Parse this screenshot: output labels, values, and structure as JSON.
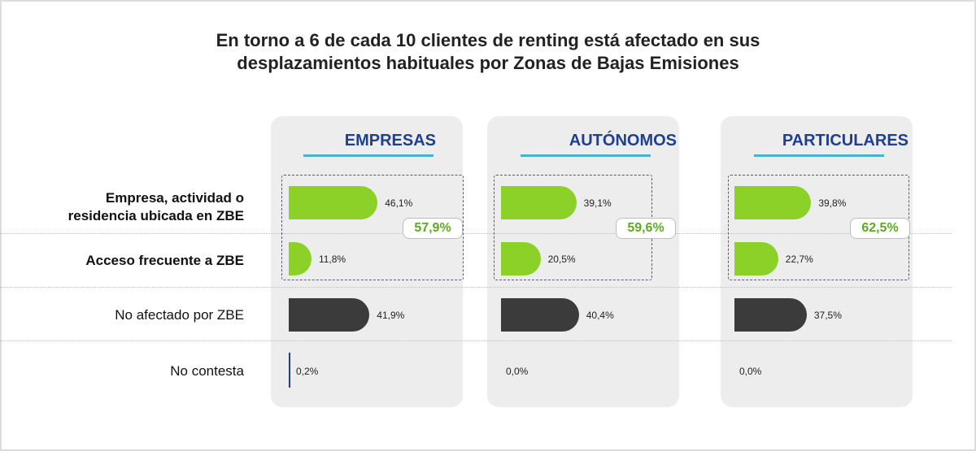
{
  "title_line1": "En torno a 6 de cada 10 clientes de renting está afectado en sus",
  "title_line2": "desplazamientos habituales por Zonas de Bajas Emisiones",
  "row_labels": {
    "zbe_line1": "Empresa, actividad o",
    "zbe_line2": "residencia ubicada en ZBE",
    "acceso": "Acceso frecuente a ZBE",
    "no_afectado": "No afectado por ZBE",
    "no_contesta": "No contesta"
  },
  "colors": {
    "green": "#8cd127",
    "dark": "#3b3b3b",
    "header": "#1f3f8f",
    "accent": "#46b3d4",
    "sum": "#5cab1e"
  },
  "chart_data": {
    "type": "bar",
    "orientation": "horizontal",
    "categories": [
      "Empresa, actividad o residencia ubicada en ZBE",
      "Acceso frecuente a ZBE",
      "No afectado por ZBE",
      "No contesta"
    ],
    "unit": "%",
    "panels": [
      {
        "name": "EMPRESAS",
        "values": [
          46.1,
          11.8,
          41.9,
          0.2
        ],
        "labels": [
          "46,1%",
          "11,8%",
          "41,9%",
          "0,2%"
        ],
        "total_affected": "57,9%"
      },
      {
        "name": "AUTÓNOMOS",
        "values": [
          39.1,
          20.5,
          40.4,
          0.0
        ],
        "labels": [
          "39,1%",
          "20,5%",
          "40,4%",
          "0,0%"
        ],
        "total_affected": "59,6%"
      },
      {
        "name": "PARTICULARES",
        "values": [
          39.8,
          22.7,
          37.5,
          0.0
        ],
        "labels": [
          "39,8%",
          "22,7%",
          "37,5%",
          "0,0%"
        ],
        "total_affected": "62,5%"
      }
    ]
  }
}
